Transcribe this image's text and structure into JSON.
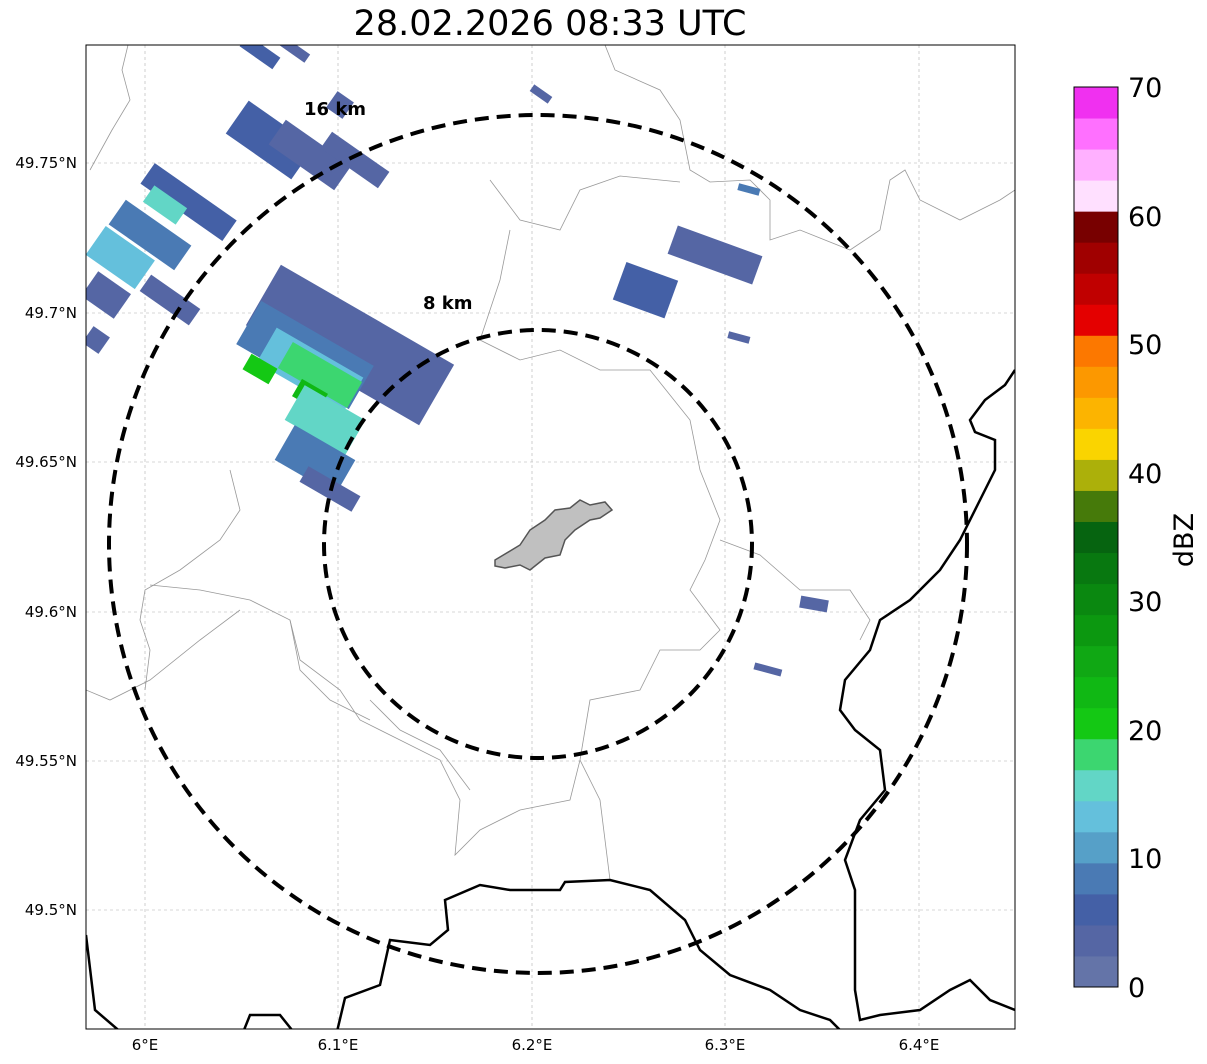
{
  "title": "28.02.2026 08:33 UTC",
  "x_ticks": [
    "6°E",
    "6.1°E",
    "6.2°E",
    "6.3°E",
    "6.4°E"
  ],
  "y_ticks": [
    "49.75°N",
    "49.7°N",
    "49.65°N",
    "49.6°N",
    "49.55°N",
    "49.5°N"
  ],
  "range_rings": [
    {
      "label": "16 km",
      "range_km": 16
    },
    {
      "label": "8 km",
      "range_km": 8
    }
  ],
  "colorbar": {
    "label": "dBZ",
    "tick_labels": [
      "0",
      "10",
      "20",
      "30",
      "40",
      "50",
      "60",
      "70"
    ],
    "colors": [
      "#6474a8",
      "#5566a4",
      "#4460a6",
      "#4a7ab4",
      "#56a0c8",
      "#64c0dc",
      "#62d6c6",
      "#3cd670",
      "#14c814",
      "#10b814",
      "#10a814",
      "#0c9810",
      "#0a8810",
      "#087810",
      "#066410",
      "#467a0a",
      "#acb00a",
      "#fad400",
      "#fcb400",
      "#fc9800",
      "#fc7800",
      "#e40000",
      "#c00000",
      "#a00000",
      "#780000",
      "#ffe0ff",
      "#ffb0ff",
      "#ff70ff",
      "#f030f0"
    ]
  },
  "colors": {
    "city_fill": "#c0c0c0",
    "ring": "#000000",
    "border": "#000000",
    "admin_lines": "#999999"
  }
}
